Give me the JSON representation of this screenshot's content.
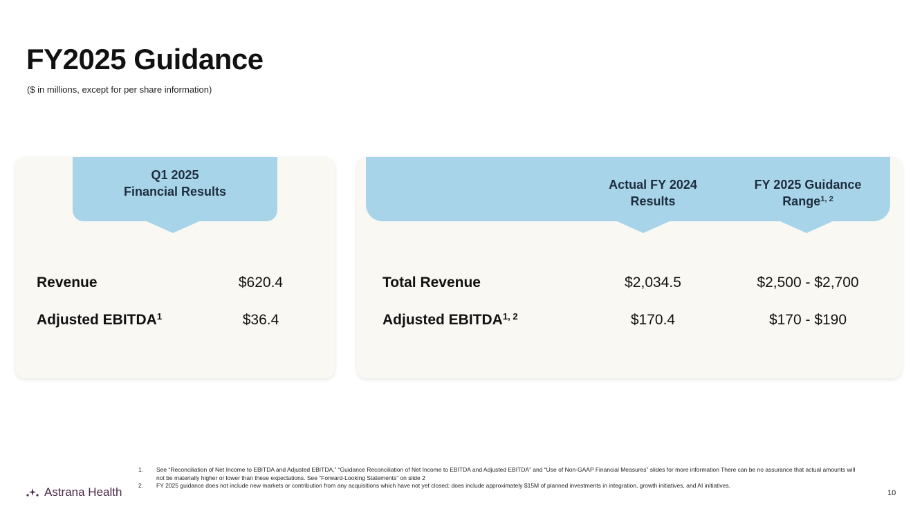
{
  "header": {
    "title": "FY2025 Guidance",
    "subtitle": "($ in millions, except for per share information)"
  },
  "q1_card": {
    "header_line1": "Q1 2025",
    "header_line2": "Financial Results",
    "rows": [
      {
        "label": "Revenue",
        "sup": "",
        "value": "$620.4"
      },
      {
        "label": "Adjusted EBITDA",
        "sup": "1",
        "value": "$36.4"
      }
    ]
  },
  "fy_card": {
    "col1_line1": "Actual FY 2024",
    "col1_line2": "Results",
    "col2_line1": "FY 2025 Guidance",
    "col2_line2": "Range",
    "col2_sup": "1, 2",
    "rows": [
      {
        "label": "Total Revenue",
        "sup": "",
        "actual": "$2,034.5",
        "guidance": "$2,500 - $2,700"
      },
      {
        "label": "Adjusted EBITDA",
        "sup": "1, 2",
        "actual": "$170.4",
        "guidance": "$170 - $190"
      }
    ]
  },
  "footer": {
    "logo_text": "Astrana Health",
    "footnotes": [
      {
        "num": "1.",
        "text": "See “Reconciliation of Net Income to EBITDA and Adjusted EBITDA,” “Guidance Reconciliation of Net Income to EBITDA and Adjusted EBITDA” and “Use of Non-GAAP Financial Measures” slides for more information There can be no assurance that actual amounts will not be materially higher or lower than these expectations. See “Forward-Looking Statements” on slide 2"
      },
      {
        "num": "2.",
        "text": "FY 2025 guidance does not include new markets or contribution from any acquisitions which have not yet closed; does include approximately $15M of planned investments in integration, growth initiatives, and AI initiatives."
      }
    ],
    "page_number": "10"
  },
  "colors": {
    "header_band": "#a8d4ea",
    "card_background": "#faf8f3",
    "logo": "#4a2848"
  }
}
